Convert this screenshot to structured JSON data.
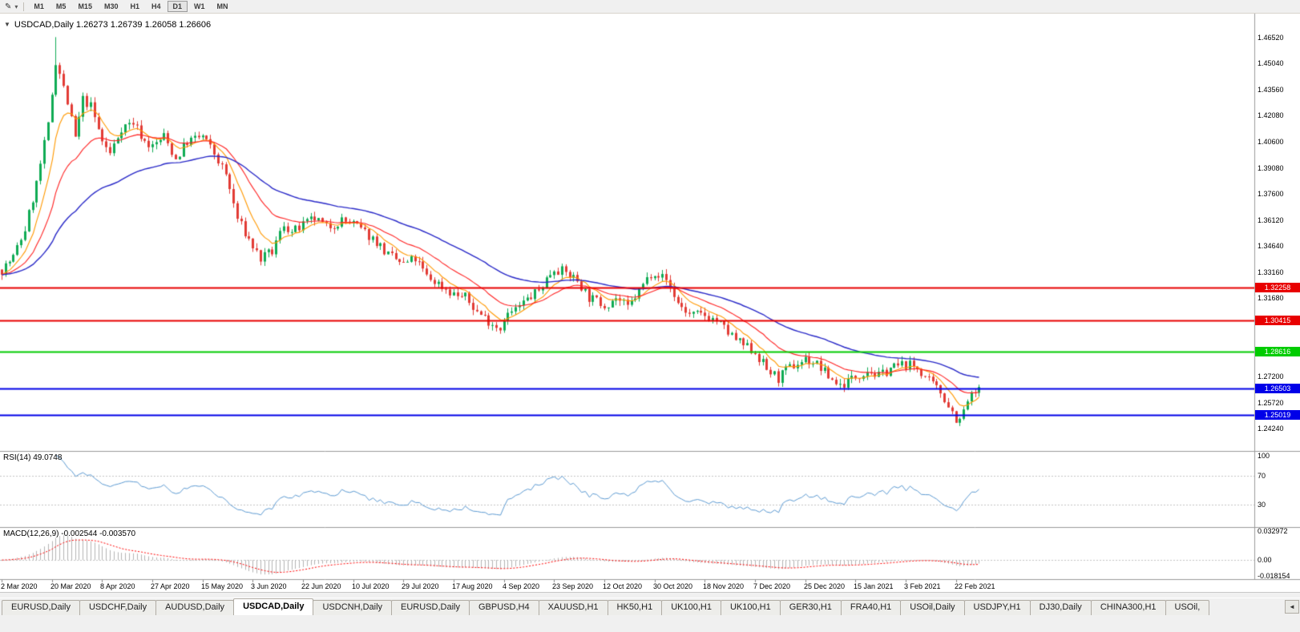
{
  "toolbar": {
    "pen_icon": "✎",
    "dropdown_icon": "▾",
    "timeframes": [
      "M1",
      "M5",
      "M15",
      "M30",
      "H1",
      "H4",
      "D1",
      "W1",
      "MN"
    ],
    "active_timeframe": "D1"
  },
  "chart": {
    "one_click_icon": "▼",
    "title_line": "USDCAD,Daily 1.26273 1.26739 1.26058 1.26606"
  },
  "chart_data": {
    "type": "candlestick",
    "symbol": "USDCAD",
    "timeframe": "Daily",
    "last_bar": {
      "open": 1.26273,
      "high": 1.26739,
      "low": 1.26058,
      "close": 1.26606
    },
    "bars": 254,
    "price_anchors": [
      [
        0,
        1.333
      ],
      [
        3,
        1.34
      ],
      [
        6,
        1.356
      ],
      [
        9,
        1.382
      ],
      [
        12,
        1.415
      ],
      [
        14,
        1.452
      ],
      [
        15,
        1.445
      ],
      [
        17,
        1.428
      ],
      [
        19,
        1.408
      ],
      [
        21,
        1.43
      ],
      [
        23,
        1.426
      ],
      [
        26,
        1.406
      ],
      [
        28,
        1.399
      ],
      [
        31,
        1.414
      ],
      [
        34,
        1.417
      ],
      [
        37,
        1.406
      ],
      [
        39,
        1.403
      ],
      [
        42,
        1.409
      ],
      [
        45,
        1.396
      ],
      [
        48,
        1.406
      ],
      [
        52,
        1.409
      ],
      [
        55,
        1.399
      ],
      [
        58,
        1.387
      ],
      [
        61,
        1.362
      ],
      [
        64,
        1.35
      ],
      [
        67,
        1.339
      ],
      [
        70,
        1.343
      ],
      [
        73,
        1.359
      ],
      [
        75,
        1.354
      ],
      [
        78,
        1.358
      ],
      [
        81,
        1.362
      ],
      [
        84,
        1.357
      ],
      [
        88,
        1.361
      ],
      [
        91,
        1.359
      ],
      [
        94,
        1.354
      ],
      [
        97,
        1.349
      ],
      [
        100,
        1.341
      ],
      [
        104,
        1.336
      ],
      [
        107,
        1.339
      ],
      [
        110,
        1.329
      ],
      [
        113,
        1.325
      ],
      [
        117,
        1.319
      ],
      [
        120,
        1.317
      ],
      [
        123,
        1.309
      ],
      [
        126,
        1.304
      ],
      [
        129,
        1.2995
      ],
      [
        130,
        1.306
      ],
      [
        133,
        1.31
      ],
      [
        136,
        1.316
      ],
      [
        139,
        1.321
      ],
      [
        142,
        1.331
      ],
      [
        143,
        1.334
      ],
      [
        146,
        1.331
      ],
      [
        149,
        1.327
      ],
      [
        152,
        1.317
      ],
      [
        156,
        1.313
      ],
      [
        159,
        1.317
      ],
      [
        162,
        1.311
      ],
      [
        165,
        1.321
      ],
      [
        168,
        1.331
      ],
      [
        169,
        1.332
      ],
      [
        172,
        1.327
      ],
      [
        175,
        1.314
      ],
      [
        178,
        1.307
      ],
      [
        182,
        1.307
      ],
      [
        185,
        1.304
      ],
      [
        188,
        1.297
      ],
      [
        191,
        1.291
      ],
      [
        195,
        1.286
      ],
      [
        198,
        1.276
      ],
      [
        201,
        1.271
      ],
      [
        204,
        1.277
      ],
      [
        208,
        1.282
      ],
      [
        211,
        1.279
      ],
      [
        214,
        1.272
      ],
      [
        217,
        1.267
      ],
      [
        221,
        1.272
      ],
      [
        224,
        1.276
      ],
      [
        227,
        1.272
      ],
      [
        230,
        1.277
      ],
      [
        234,
        1.279
      ],
      [
        237,
        1.277
      ],
      [
        240,
        1.269
      ],
      [
        243,
        1.263
      ],
      [
        245,
        1.256
      ],
      [
        247,
        1.248
      ],
      [
        248,
        1.2465
      ],
      [
        250,
        1.258
      ],
      [
        252,
        1.263
      ],
      [
        253,
        1.2661
      ]
    ],
    "spikes": [
      {
        "index": 14,
        "high": 1.4655
      },
      {
        "index": 248,
        "low": 1.2438
      }
    ],
    "candle_up_color": "#0fab54",
    "candle_down_color": "#e23b35",
    "moving_averages": [
      {
        "name": "fast",
        "period": 8,
        "color": "#ff9900"
      },
      {
        "name": "medium",
        "period": 20,
        "color": "#ff2222"
      },
      {
        "name": "slow",
        "period": 50,
        "color": "#2929c8"
      }
    ],
    "price_axis_labels": [
      "1.46520",
      "1.45040",
      "1.43560",
      "1.42080",
      "1.40600",
      "1.39080",
      "1.37600",
      "1.36120",
      "1.34640",
      "1.33160",
      "1.31680",
      "1.27200",
      "1.25720",
      "1.24240"
    ],
    "horizontal_lines": [
      {
        "price": 1.32258,
        "label": "1.32258",
        "color": "#e80000"
      },
      {
        "price": 1.30415,
        "label": "1.30415",
        "color": "#e80000"
      },
      {
        "price": 1.28616,
        "label": "1.28616",
        "color": "#00cc00"
      },
      {
        "price": 1.26503,
        "label": "1.26503",
        "color": "#0000e8"
      },
      {
        "price": 1.25019,
        "label": "1.25019",
        "color": "#0000e8"
      }
    ],
    "date_labels": [
      "2 Mar 2020",
      "20 Mar 2020",
      "8 Apr 2020",
      "27 Apr 2020",
      "15 May 2020",
      "3 Jun 2020",
      "22 Jun 2020",
      "10 Jul 2020",
      "29 Jul 2020",
      "17 Aug 2020",
      "4 Sep 2020",
      "23 Sep 2020",
      "12 Oct 2020",
      "30 Oct 2020",
      "18 Nov 2020",
      "7 Dec 2020",
      "25 Dec 2020",
      "15 Jan 2021",
      "3 Feb 2021",
      "22 Feb 2021"
    ],
    "rsi": {
      "label": "RSI(14) 49.0748",
      "period": 14,
      "value": 49.0748,
      "levels": [
        "100",
        "70",
        "30"
      ],
      "level_values": [
        100,
        70,
        30
      ],
      "line_color": "#5d9bd3"
    },
    "macd": {
      "label": "MACD(12,26,9) -0.002544 -0.003570",
      "fast": 12,
      "slow": 26,
      "signal": 9,
      "values": [
        -0.002544,
        -0.00357
      ],
      "axis_labels": [
        "0.032972",
        "0.00",
        "-0.018154"
      ],
      "range": {
        "max": 0.032972,
        "min": -0.018154
      },
      "histogram_color": "#b4b4b4",
      "signal_color": "#ff0000"
    }
  },
  "tabs": {
    "items": [
      "EURUSD,Daily",
      "USDCHF,Daily",
      "AUDUSD,Daily",
      "USDCAD,Daily",
      "USDCNH,Daily",
      "EURUSD,Daily",
      "GBPUSD,H4",
      "XAUUSD,H1",
      "HK50,H1",
      "UK100,H1",
      "UK100,H1",
      "GER30,H1",
      "FRA40,H1",
      "USOil,Daily",
      "USDJPY,H1",
      "DJ30,Daily",
      "CHINA300,H1",
      "USOil,"
    ],
    "active_index": 3,
    "scroll_left_icon": "◄"
  }
}
